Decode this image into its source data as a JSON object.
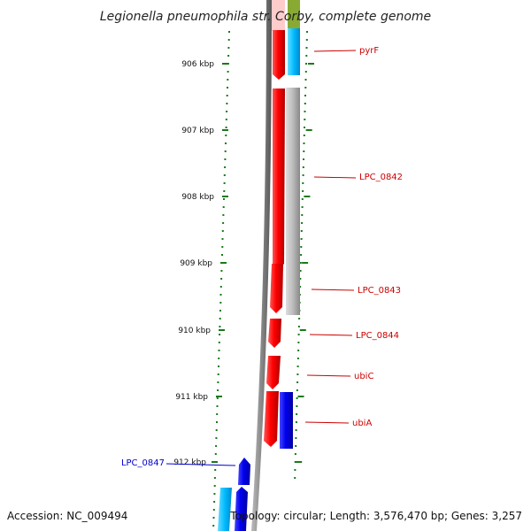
{
  "title": "Legionella pneumophila str. Corby, complete genome",
  "footer": {
    "accession": "Accession: NC_009494",
    "topology": "Topology: circular; Length: 3,576,470 bp; Genes: 3,257"
  },
  "colors": {
    "forward_gene": "#ff0000",
    "reverse_gene": "#0000ee",
    "cyan_gene": "#00ccff",
    "gray_feature": "#bbbbbb",
    "backbone": "#888888",
    "tick_green": "#1a7a1a",
    "pink_feature": "#ffcccc",
    "olive_feature": "#88aa33"
  },
  "position_ticks": [
    {
      "label": "906 kbp",
      "kbp": 906
    },
    {
      "label": "907 kbp",
      "kbp": 907
    },
    {
      "label": "908 kbp",
      "kbp": 908
    },
    {
      "label": "909 kbp",
      "kbp": 909
    },
    {
      "label": "910 kbp",
      "kbp": 910
    },
    {
      "label": "911 kbp",
      "kbp": 911
    },
    {
      "label": "912 kbp",
      "kbp": 912
    }
  ],
  "genes": [
    {
      "name": "pyrF",
      "strand": "forward",
      "color": "#cc0000"
    },
    {
      "name": "LPC_0842",
      "strand": "forward",
      "color": "#cc0000"
    },
    {
      "name": "LPC_0843",
      "strand": "forward",
      "color": "#cc0000"
    },
    {
      "name": "LPC_0844",
      "strand": "forward",
      "color": "#cc0000"
    },
    {
      "name": "ubiC",
      "strand": "forward",
      "color": "#cc0000"
    },
    {
      "name": "ubiA",
      "strand": "forward",
      "color": "#cc0000"
    },
    {
      "name": "LPC_0847",
      "strand": "reverse",
      "color": "#0000cc"
    }
  ]
}
